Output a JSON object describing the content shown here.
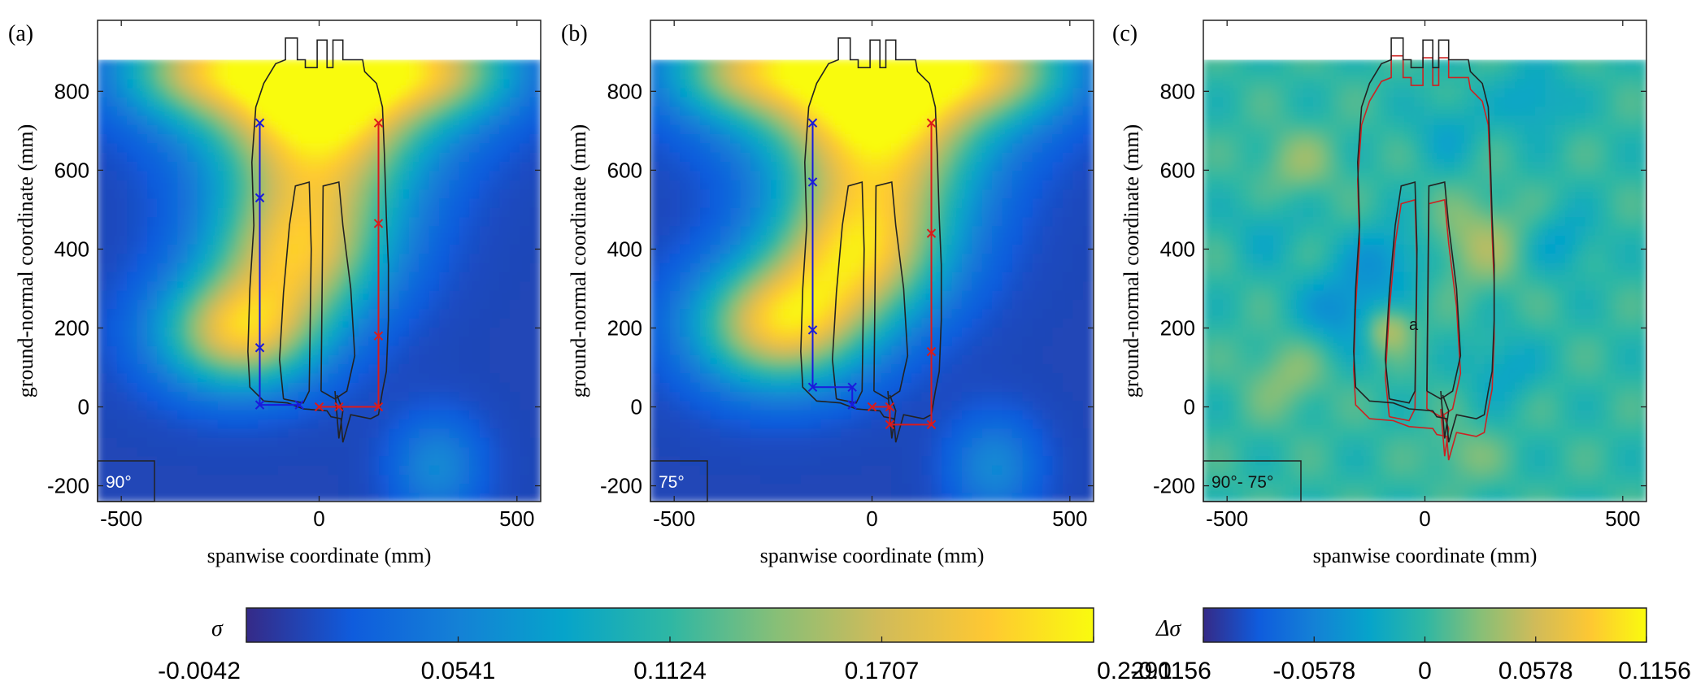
{
  "chart_data": [
    {
      "type": "heatmap",
      "panel_label": "(a)",
      "angle_label": "90°",
      "xlabel": "spanwise coordinate (mm)",
      "ylabel": "ground-normal coordinate (mm)",
      "xlim": [
        -560,
        560
      ],
      "ylim": [
        -240,
        980
      ],
      "xticks": [
        "-500",
        "0",
        "500"
      ],
      "xtick_values": [
        -500,
        0,
        500
      ],
      "yticks": [
        "-200",
        "0",
        "200",
        "400",
        "600",
        "800"
      ],
      "ytick_values": [
        -200,
        0,
        200,
        400,
        600,
        800
      ],
      "data_top": 880,
      "colormap": "parula",
      "clim": [
        -0.0042,
        0.229
      ],
      "hotspots": [
        {
          "x": 0,
          "y": 880,
          "sx": 240,
          "sy": 140,
          "v": 0.229
        },
        {
          "x": 0,
          "y": 640,
          "sx": 170,
          "sy": 170,
          "v": 0.155
        },
        {
          "x": -60,
          "y": 380,
          "sx": 150,
          "sy": 120,
          "v": 0.145
        },
        {
          "x": -200,
          "y": 190,
          "sx": 140,
          "sy": 100,
          "v": 0.18
        },
        {
          "x": -330,
          "y": 850,
          "sx": 130,
          "sy": 80,
          "v": 0.09
        },
        {
          "x": 330,
          "y": 850,
          "sx": 130,
          "sy": 80,
          "v": 0.09
        },
        {
          "x": 300,
          "y": -150,
          "sx": 80,
          "sy": 90,
          "v": 0.06
        }
      ],
      "probes_left": [
        {
          "x": -150,
          "y": 720
        },
        {
          "x": -150,
          "y": 530
        },
        {
          "x": -150,
          "y": 150
        },
        {
          "x": -150,
          "y": 5
        },
        {
          "x": -50,
          "y": 5
        }
      ],
      "probes_right": [
        {
          "x": 150,
          "y": 720
        },
        {
          "x": 150,
          "y": 465
        },
        {
          "x": 150,
          "y": 180
        },
        {
          "x": 150,
          "y": 0
        },
        {
          "x": 50,
          "y": 0
        },
        {
          "x": 0,
          "y": 0
        }
      ]
    },
    {
      "type": "heatmap",
      "panel_label": "(b)",
      "angle_label": "75°",
      "xlabel": "spanwise coordinate (mm)",
      "ylabel": "ground-normal coordinate (mm)",
      "xlim": [
        -560,
        560
      ],
      "ylim": [
        -240,
        980
      ],
      "xticks": [
        "-500",
        "0",
        "500"
      ],
      "xtick_values": [
        -500,
        0,
        500
      ],
      "yticks": [
        "-200",
        "0",
        "200",
        "400",
        "600",
        "800"
      ],
      "ytick_values": [
        -200,
        0,
        200,
        400,
        600,
        800
      ],
      "data_top": 880,
      "colormap": "parula",
      "clim": [
        -0.0042,
        0.229
      ],
      "hotspots": [
        {
          "x": 0,
          "y": 880,
          "sx": 250,
          "sy": 140,
          "v": 0.229
        },
        {
          "x": 20,
          "y": 630,
          "sx": 170,
          "sy": 170,
          "v": 0.16
        },
        {
          "x": -40,
          "y": 380,
          "sx": 150,
          "sy": 120,
          "v": 0.15
        },
        {
          "x": -230,
          "y": 210,
          "sx": 150,
          "sy": 110,
          "v": 0.19
        },
        {
          "x": -340,
          "y": 850,
          "sx": 130,
          "sy": 80,
          "v": 0.09
        },
        {
          "x": 340,
          "y": 850,
          "sx": 130,
          "sy": 80,
          "v": 0.09
        },
        {
          "x": 310,
          "y": -150,
          "sx": 80,
          "sy": 90,
          "v": 0.06
        }
      ],
      "probes_left": [
        {
          "x": -150,
          "y": 720
        },
        {
          "x": -150,
          "y": 570
        },
        {
          "x": -150,
          "y": 195
        },
        {
          "x": -150,
          "y": 50
        },
        {
          "x": -50,
          "y": 50
        },
        {
          "x": -50,
          "y": 5
        }
      ],
      "probes_right": [
        {
          "x": 150,
          "y": 720
        },
        {
          "x": 150,
          "y": 440
        },
        {
          "x": 150,
          "y": 140
        },
        {
          "x": 150,
          "y": -45
        },
        {
          "x": 45,
          "y": -45
        },
        {
          "x": 45,
          "y": 0
        },
        {
          "x": 0,
          "y": 0
        }
      ]
    },
    {
      "type": "heatmap",
      "panel_label": "(c)",
      "angle_label": "90°- 75°",
      "annotation": "a",
      "xlabel": "spanwise coordinate (mm)",
      "ylabel": "ground-normal coordinate (mm)",
      "xlim": [
        -560,
        560
      ],
      "ylim": [
        -240,
        980
      ],
      "xticks": [
        "-500",
        "0",
        "500"
      ],
      "xtick_values": [
        -500,
        0,
        500
      ],
      "yticks": [
        "-200",
        "0",
        "200",
        "400",
        "600",
        "800"
      ],
      "ytick_values": [
        -200,
        0,
        200,
        400,
        600,
        800
      ],
      "data_top": 880,
      "colormap": "parula",
      "clim": [
        -0.1156,
        0.1156
      ],
      "hotspots": [
        {
          "x": -200,
          "y": 250,
          "sx": 80,
          "sy": 70,
          "v": -0.05
        },
        {
          "x": -90,
          "y": 380,
          "sx": 70,
          "sy": 60,
          "v": -0.04
        },
        {
          "x": -90,
          "y": 200,
          "sx": 40,
          "sy": 40,
          "v": 0.06
        },
        {
          "x": 140,
          "y": 420,
          "sx": 80,
          "sy": 80,
          "v": 0.04
        },
        {
          "x": -320,
          "y": 620,
          "sx": 70,
          "sy": 60,
          "v": 0.03
        },
        {
          "x": -350,
          "y": 80,
          "sx": 70,
          "sy": 70,
          "v": 0.03
        },
        {
          "x": 280,
          "y": 780,
          "sx": 60,
          "sy": 60,
          "v": -0.035
        },
        {
          "x": 200,
          "y": 100,
          "sx": 60,
          "sy": 60,
          "v": -0.03
        },
        {
          "x": 350,
          "y": 420,
          "sx": 60,
          "sy": 60,
          "v": -0.03
        },
        {
          "x": -400,
          "y": 450,
          "sx": 60,
          "sy": 60,
          "v": -0.02
        },
        {
          "x": 60,
          "y": 700,
          "sx": 60,
          "sy": 60,
          "v": -0.025
        },
        {
          "x": 100,
          "y": -120,
          "sx": 60,
          "sy": 50,
          "v": 0.025
        }
      ]
    }
  ],
  "colorbars": [
    {
      "label": "σ",
      "ticks": [
        "-0.0042",
        "0.0541",
        "0.1124",
        "0.1707",
        "0.2290"
      ],
      "tick_values": [
        -0.0042,
        0.0541,
        0.1124,
        0.1707,
        0.229
      ],
      "clim": [
        -0.0042,
        0.229
      ]
    },
    {
      "label": "Δσ",
      "ticks": [
        "-0.1156",
        "-0.0578",
        "0",
        "0.0578",
        "0.1156"
      ],
      "tick_values": [
        -0.1156,
        -0.0578,
        0,
        0.0578,
        0.1156
      ],
      "clim": [
        -0.1156,
        0.1156
      ]
    }
  ],
  "colors": {
    "probe_left": "#1a1adc",
    "probe_right": "#dc1a1a",
    "outline": "#222222",
    "outline_alt": "#cc2222",
    "parula": [
      "#352a87",
      "#0f5cdd",
      "#1481d6",
      "#06a4ca",
      "#2eb7a4",
      "#87bf77",
      "#d1bb59",
      "#fec832",
      "#f9fb0e"
    ]
  }
}
